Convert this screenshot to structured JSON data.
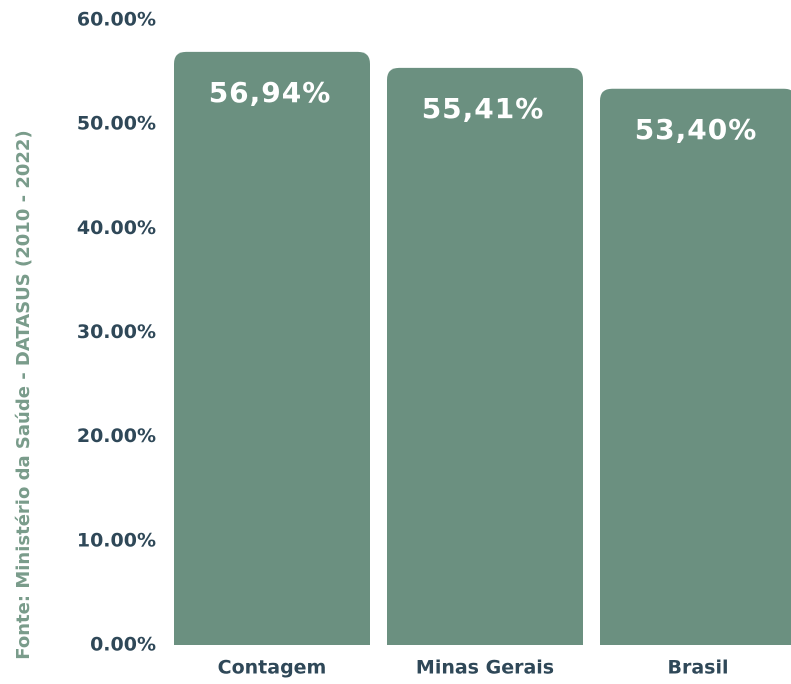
{
  "chart_data": {
    "type": "bar",
    "y_axis_label": "Fonte: Ministério da Saúde - DATASUS (2010 - 2022)",
    "categories": [
      "Contagem",
      "Minas Gerais",
      "Brasil"
    ],
    "values": [
      56.94,
      55.41,
      53.4
    ],
    "value_labels": [
      "56,94%",
      "55,41%",
      "53,40%"
    ],
    "color": "#6b9080",
    "ylim": [
      0,
      60
    ],
    "yticks": [
      {
        "value": 0,
        "label": "0.00%"
      },
      {
        "value": 10,
        "label": "10.00%"
      },
      {
        "value": 20,
        "label": "20.00%"
      },
      {
        "value": 30,
        "label": "30.00%"
      },
      {
        "value": 40,
        "label": "40.00%"
      },
      {
        "value": 50,
        "label": "50.00%"
      },
      {
        "value": 60,
        "label": "60.00%"
      }
    ],
    "grid": false
  }
}
